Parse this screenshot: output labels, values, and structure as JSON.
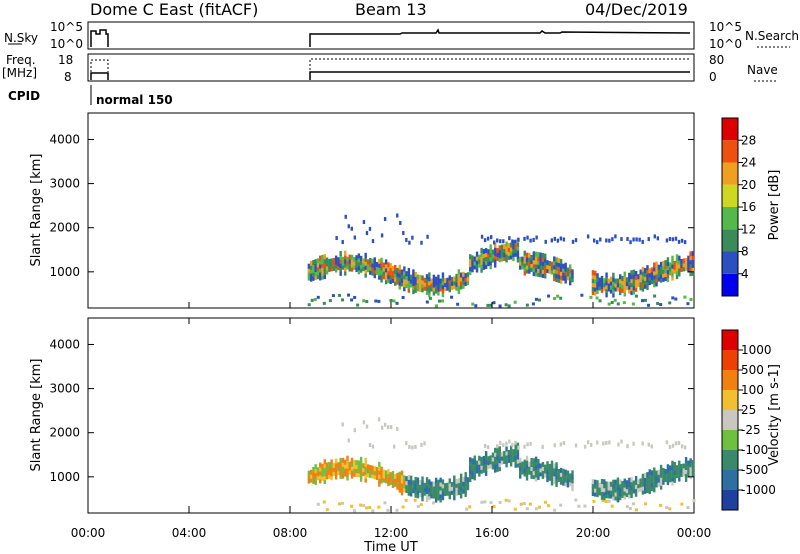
{
  "header": {
    "station": "Dome C East (fitACF)",
    "beam": "Beam 13",
    "date": "04/Dec/2019"
  },
  "strips": {
    "nsky_label": "N.Sky",
    "nsky_ticks": [
      "10^5",
      "10^0"
    ],
    "nsearch_label": "N.Search",
    "nsearch_ticks": [
      "10^5",
      "10^0"
    ],
    "freq_label_1": "Freq.",
    "freq_label_2": "[MHz]",
    "freq_ticks": [
      "18",
      "8"
    ],
    "nave_label": "Nave",
    "nave_ticks": [
      "80",
      "0"
    ],
    "cpid_label": "CPID",
    "cpid_value": "normal 150"
  },
  "chart_data": [
    {
      "type": "heatmap",
      "panel": "power",
      "ylabel": "Slant Range [km]",
      "yticks": [
        1000,
        2000,
        3000,
        4000
      ],
      "ylim": [
        180,
        4600
      ],
      "xlim_hours": [
        0,
        24
      ],
      "colorbar_label": "Power [dB]",
      "colorbar_ticks": [
        "28",
        "24",
        "20",
        "16",
        "12",
        "8",
        "4"
      ],
      "colorbar_colors": [
        "#0000ee",
        "#2d50c0",
        "#3a8a5a",
        "#55b84a",
        "#cfd820",
        "#f0a020",
        "#ee5010",
        "#dd0000"
      ]
    },
    {
      "type": "heatmap",
      "panel": "velocity",
      "ylabel": "Slant Range [km]",
      "yticks": [
        1000,
        2000,
        3000,
        4000
      ],
      "ylim": [
        180,
        4600
      ],
      "xlim_hours": [
        0,
        24
      ],
      "colorbar_label": "Velocity [m s-1]",
      "colorbar_ticks": [
        "1000",
        "500",
        "100",
        "25",
        "-25",
        "-100",
        "-500",
        "-1000"
      ],
      "colorbar_colors": [
        "#2040a0",
        "#2d6fa0",
        "#3a8a6a",
        "#70c040",
        "#c8c8c0",
        "#f0c030",
        "#f08010",
        "#ee4000",
        "#dd0000"
      ]
    }
  ],
  "xaxis": {
    "ticks": [
      "00:00",
      "04:00",
      "08:00",
      "12:00",
      "16:00",
      "20:00",
      "00:00"
    ],
    "label": "Time UT"
  }
}
